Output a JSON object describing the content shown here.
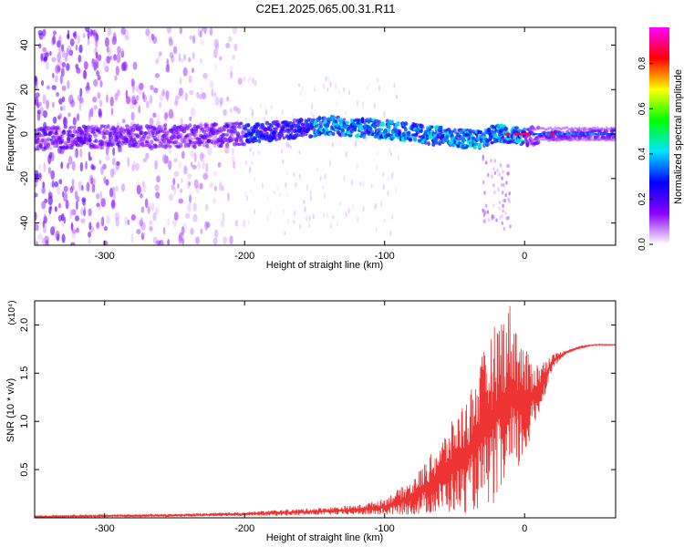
{
  "title": "C2E1.2025.065.00.31.R11",
  "chart_data": [
    {
      "type": "heatmap",
      "title": "C2E1.2025.065.00.31.R11",
      "xlabel": "Height of straight line (km)",
      "ylabel": "Frequency (Hz)",
      "xlim": [
        -350,
        65
      ],
      "ylim": [
        -50,
        48
      ],
      "x_ticks": [
        {
          "value": -300,
          "label": "-300"
        },
        {
          "value": -200,
          "label": "-200"
        },
        {
          "value": -100,
          "label": "-100"
        },
        {
          "value": 0,
          "label": "0"
        }
      ],
      "y_ticks": [
        {
          "value": -40,
          "label": "-40"
        },
        {
          "value": -20,
          "label": "-20"
        },
        {
          "value": 0,
          "label": "0"
        },
        {
          "value": 20,
          "label": "20"
        },
        {
          "value": 40,
          "label": "40"
        }
      ],
      "colorbar": {
        "label": "Normalized spectral amplitude",
        "range": [
          0.0,
          0.96
        ],
        "ticks": [
          {
            "value": 0.0,
            "label": "0.0"
          },
          {
            "value": 0.2,
            "label": "0.2"
          },
          {
            "value": 0.4,
            "label": "0.4"
          },
          {
            "value": 0.6,
            "label": "0.6"
          },
          {
            "value": 0.8,
            "label": "0.8"
          }
        ],
        "colors": [
          "#ffffff",
          "#8a00ff",
          "#0000ff",
          "#00e5ff",
          "#00ff00",
          "#ffff00",
          "#ff0000",
          "#ff00ff"
        ]
      },
      "ridge": {
        "x": [
          -350,
          -300,
          -250,
          -200,
          -150,
          -140,
          -100,
          -60,
          -30,
          -20,
          -10,
          0,
          20,
          40,
          65
        ],
        "y": [
          -2,
          -1,
          -1,
          0,
          3,
          4,
          2,
          -1,
          -3,
          1,
          0,
          -1,
          -1,
          0,
          0
        ]
      },
      "noise_extent_x": [
        -350,
        -200
      ],
      "grid": false
    },
    {
      "type": "line",
      "title": "",
      "xlabel": "Height of straight line (km)",
      "ylabel": "SNR (10 * v/v)",
      "y_multiplier": "(x10⁴)",
      "xlim": [
        -350,
        65
      ],
      "ylim": [
        0,
        2.25
      ],
      "x_ticks": [
        {
          "value": -300,
          "label": "-300"
        },
        {
          "value": -200,
          "label": "-200"
        },
        {
          "value": -100,
          "label": "-100"
        },
        {
          "value": 0,
          "label": "0"
        }
      ],
      "y_ticks": [
        {
          "value": 0.5,
          "label": "0.5"
        },
        {
          "value": 1.0,
          "label": "1.0"
        },
        {
          "value": 1.5,
          "label": "1.5"
        },
        {
          "value": 2.0,
          "label": "2.0"
        }
      ],
      "series": [
        {
          "color": "#ee3333",
          "envelope": {
            "x": [
              -350,
              -300,
              -250,
              -200,
              -180,
              -150,
              -120,
              -100,
              -80,
              -60,
              -50,
              -40,
              -30,
              -20,
              -10,
              0,
              10,
              20,
              30,
              40,
              50,
              65
            ],
            "upper": [
              0.02,
              0.03,
              0.04,
              0.06,
              0.08,
              0.1,
              0.13,
              0.2,
              0.4,
              0.8,
              1.05,
              1.3,
              1.7,
              2.05,
              2.25,
              1.75,
              1.6,
              1.7,
              1.74,
              1.78,
              1.8,
              1.8
            ],
            "lower": [
              0.0,
              0.01,
              0.01,
              0.02,
              0.02,
              0.03,
              0.03,
              0.03,
              0.03,
              0.04,
              0.05,
              0.05,
              0.1,
              0.15,
              0.3,
              0.6,
              1.05,
              1.55,
              1.7,
              1.76,
              1.79,
              1.79
            ]
          }
        }
      ],
      "grid": false
    }
  ]
}
